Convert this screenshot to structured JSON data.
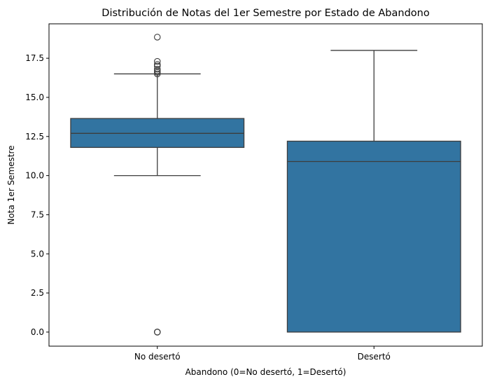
{
  "chart_data": {
    "type": "box",
    "title": "Distribución de Notas del 1er Semestre por Estado de Abandono",
    "xlabel": "Abandono (0=No desertó, 1=Desertó)",
    "ylabel": "Nota 1er Semestre",
    "categories": [
      "No desertó",
      "Desertó"
    ],
    "ylim": [
      -0.9,
      19.7
    ],
    "yticks": [
      0.0,
      2.5,
      5.0,
      7.5,
      10.0,
      12.5,
      15.0,
      17.5
    ],
    "ytick_labels": [
      "0.0",
      "2.5",
      "5.0",
      "7.5",
      "10.0",
      "12.5",
      "15.0",
      "17.5"
    ],
    "box_color": "#3274a1",
    "line_color": "#3d3d3d",
    "grid": false,
    "legend": "none",
    "boxes": [
      {
        "category": "No desertó",
        "whisker_low": 10.0,
        "q1": 11.8,
        "median": 12.7,
        "q3": 13.65,
        "whisker_high": 16.5,
        "outliers": [
          0.0,
          0.0,
          0.0,
          16.5,
          16.6,
          16.7,
          16.8,
          17.0,
          17.1,
          17.3,
          18.85
        ]
      },
      {
        "category": "Desertó",
        "whisker_low": 0.0,
        "q1": 0.0,
        "median": 10.9,
        "q3": 12.2,
        "whisker_high": 18.0,
        "outliers": []
      }
    ]
  }
}
